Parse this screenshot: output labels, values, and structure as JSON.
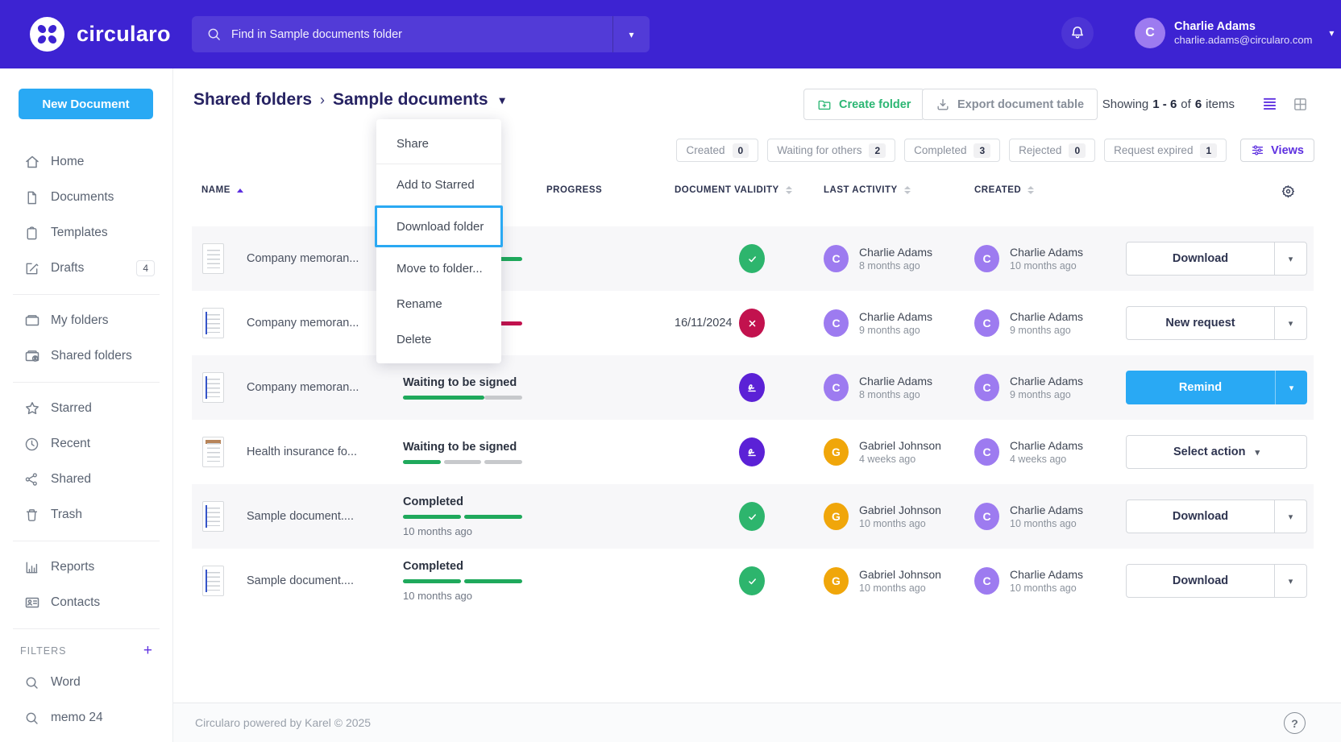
{
  "brand": {
    "name": "circularo"
  },
  "header": {
    "search_placeholder": "Find in Sample documents folder",
    "user": {
      "name": "Charlie Adams",
      "email": "charlie.adams@circularo.com",
      "initial": "C"
    }
  },
  "sidebar": {
    "new_document_label": "New Document",
    "groups": [
      {
        "items": [
          {
            "icon": "home",
            "label": "Home"
          },
          {
            "icon": "document",
            "label": "Documents"
          },
          {
            "icon": "template",
            "label": "Templates"
          },
          {
            "icon": "draft",
            "label": "Drafts",
            "badge": "4"
          }
        ]
      },
      {
        "items": [
          {
            "icon": "folder",
            "label": "My folders"
          },
          {
            "icon": "shared-folder",
            "label": "Shared folders"
          }
        ]
      },
      {
        "items": [
          {
            "icon": "star",
            "label": "Starred"
          },
          {
            "icon": "clock",
            "label": "Recent"
          },
          {
            "icon": "share",
            "label": "Shared"
          },
          {
            "icon": "trash",
            "label": "Trash"
          }
        ]
      },
      {
        "items": [
          {
            "icon": "reports",
            "label": "Reports"
          },
          {
            "icon": "contacts",
            "label": "Contacts"
          }
        ]
      }
    ],
    "filters": {
      "label": "FILTERS",
      "add_label": "+",
      "items": [
        {
          "icon": "search",
          "label": "Word"
        },
        {
          "icon": "search",
          "label": "memo 24"
        }
      ]
    }
  },
  "toolbar": {
    "breadcrumb_parent": "Shared folders",
    "breadcrumb_separator": "›",
    "breadcrumb_current": "Sample documents",
    "create_folder_label": "Create folder",
    "export_label": "Export document table",
    "showing_prefix": "Showing",
    "showing_range": "1 - 6",
    "showing_of": "of",
    "showing_total": "6",
    "showing_suffix": "items"
  },
  "filter_chips": [
    {
      "label": "Created",
      "count": "0"
    },
    {
      "label": "Waiting for others",
      "count": "2"
    },
    {
      "label": "Completed",
      "count": "3"
    },
    {
      "label": "Rejected",
      "count": "0"
    },
    {
      "label": "Request expired",
      "count": "1"
    }
  ],
  "views_label": "Views",
  "folder_menu": {
    "items": [
      "Share",
      "Add to Starred",
      "Download folder",
      "Move to folder...",
      "Rename",
      "Delete"
    ],
    "highlighted_item": "Download folder",
    "divider_after_index": 0,
    "highlight_color": "#2aa9f3"
  },
  "table": {
    "columns": [
      "NAME",
      "PROGRESS",
      "DOCUMENT VALIDITY",
      "LAST ACTIVITY",
      "CREATED"
    ],
    "sorted_column": "NAME",
    "colors": {
      "bar_green": "#1fa95c",
      "bar_gray": "#c7c9cc",
      "bar_red": "#c2124e",
      "circle_green": "#2db56d",
      "circle_red": "#c2124e",
      "circle_purple": "#5b21d6",
      "avatar_purple": "#9d7bf0",
      "avatar_orange": "#f0a60a",
      "accent_blue": "#29a9f4"
    },
    "rows": [
      {
        "name": "Company memoran...",
        "thumb": "plain",
        "status": {
          "title": "",
          "sub": "",
          "bar": {
            "gap": 0,
            "segments": [
              {
                "color": "#1fa95c",
                "pct": 100
              }
            ]
          }
        },
        "progress_icon": "check",
        "validity": "",
        "last_activity": {
          "initial": "C",
          "avatar_color": "#9d7bf0",
          "name": "Charlie Adams",
          "time": "8 months ago"
        },
        "created": {
          "initial": "C",
          "avatar_color": "#9d7bf0",
          "name": "Charlie Adams",
          "time": "10 months ago"
        },
        "action": {
          "label": "Download",
          "style": "split"
        }
      },
      {
        "name": "Company memoran...",
        "thumb": "blue",
        "status": {
          "title": "",
          "sub": "",
          "bar": {
            "gap": 0,
            "segments": [
              {
                "color": "#c2124e",
                "pct": 100
              }
            ]
          }
        },
        "progress_icon": "cross",
        "validity": "16/11/2024",
        "last_activity": {
          "initial": "C",
          "avatar_color": "#9d7bf0",
          "name": "Charlie Adams",
          "time": "9 months ago"
        },
        "created": {
          "initial": "C",
          "avatar_color": "#9d7bf0",
          "name": "Charlie Adams",
          "time": "9 months ago"
        },
        "action": {
          "label": "New request",
          "style": "split"
        }
      },
      {
        "name": "Company memoran...",
        "thumb": "blue",
        "status": {
          "title": "Waiting to be signed",
          "sub": "",
          "bar": {
            "gap": 0,
            "segments": [
              {
                "color": "#1fa95c",
                "pct": 68
              },
              {
                "color": "#c7c9cc",
                "pct": 32
              }
            ]
          }
        },
        "progress_icon": "sign",
        "validity": "",
        "last_activity": {
          "initial": "C",
          "avatar_color": "#9d7bf0",
          "name": "Charlie Adams",
          "time": "8 months ago"
        },
        "created": {
          "initial": "C",
          "avatar_color": "#9d7bf0",
          "name": "Charlie Adams",
          "time": "9 months ago"
        },
        "action": {
          "label": "Remind",
          "style": "primary"
        }
      },
      {
        "name": "Health insurance fo...",
        "thumb": "form",
        "status": {
          "title": "Waiting to be signed",
          "sub": "",
          "bar": {
            "gap": 4,
            "segments": [
              {
                "color": "#1fa95c",
                "pct": 33
              },
              {
                "color": "#c7c9cc",
                "pct": 33
              },
              {
                "color": "#c7c9cc",
                "pct": 33
              }
            ]
          }
        },
        "progress_icon": "sign",
        "validity": "",
        "last_activity": {
          "initial": "G",
          "avatar_color": "#f0a60a",
          "name": "Gabriel Johnson",
          "time": "4 weeks ago"
        },
        "created": {
          "initial": "C",
          "avatar_color": "#9d7bf0",
          "name": "Charlie Adams",
          "time": "4 weeks ago"
        },
        "action": {
          "label": "Select action",
          "style": "select"
        }
      },
      {
        "name": "Sample document....",
        "thumb": "blue",
        "status": {
          "title": "Completed",
          "sub": "10 months ago",
          "bar": {
            "gap": 4,
            "segments": [
              {
                "color": "#1fa95c",
                "pct": 50
              },
              {
                "color": "#1fa95c",
                "pct": 50
              }
            ]
          }
        },
        "progress_icon": "check",
        "validity": "",
        "last_activity": {
          "initial": "G",
          "avatar_color": "#f0a60a",
          "name": "Gabriel Johnson",
          "time": "10 months ago"
        },
        "created": {
          "initial": "C",
          "avatar_color": "#9d7bf0",
          "name": "Charlie Adams",
          "time": "10 months ago"
        },
        "action": {
          "label": "Download",
          "style": "split"
        }
      },
      {
        "name": "Sample document....",
        "thumb": "blue",
        "status": {
          "title": "Completed",
          "sub": "10 months ago",
          "bar": {
            "gap": 4,
            "segments": [
              {
                "color": "#1fa95c",
                "pct": 50
              },
              {
                "color": "#1fa95c",
                "pct": 50
              }
            ]
          }
        },
        "progress_icon": "check",
        "validity": "",
        "last_activity": {
          "initial": "G",
          "avatar_color": "#f0a60a",
          "name": "Gabriel Johnson",
          "time": "10 months ago"
        },
        "created": {
          "initial": "C",
          "avatar_color": "#9d7bf0",
          "name": "Charlie Adams",
          "time": "10 months ago"
        },
        "action": {
          "label": "Download",
          "style": "split"
        }
      }
    ]
  },
  "footer": {
    "text": "Circularo powered by Karel © 2025",
    "help_label": "?"
  }
}
